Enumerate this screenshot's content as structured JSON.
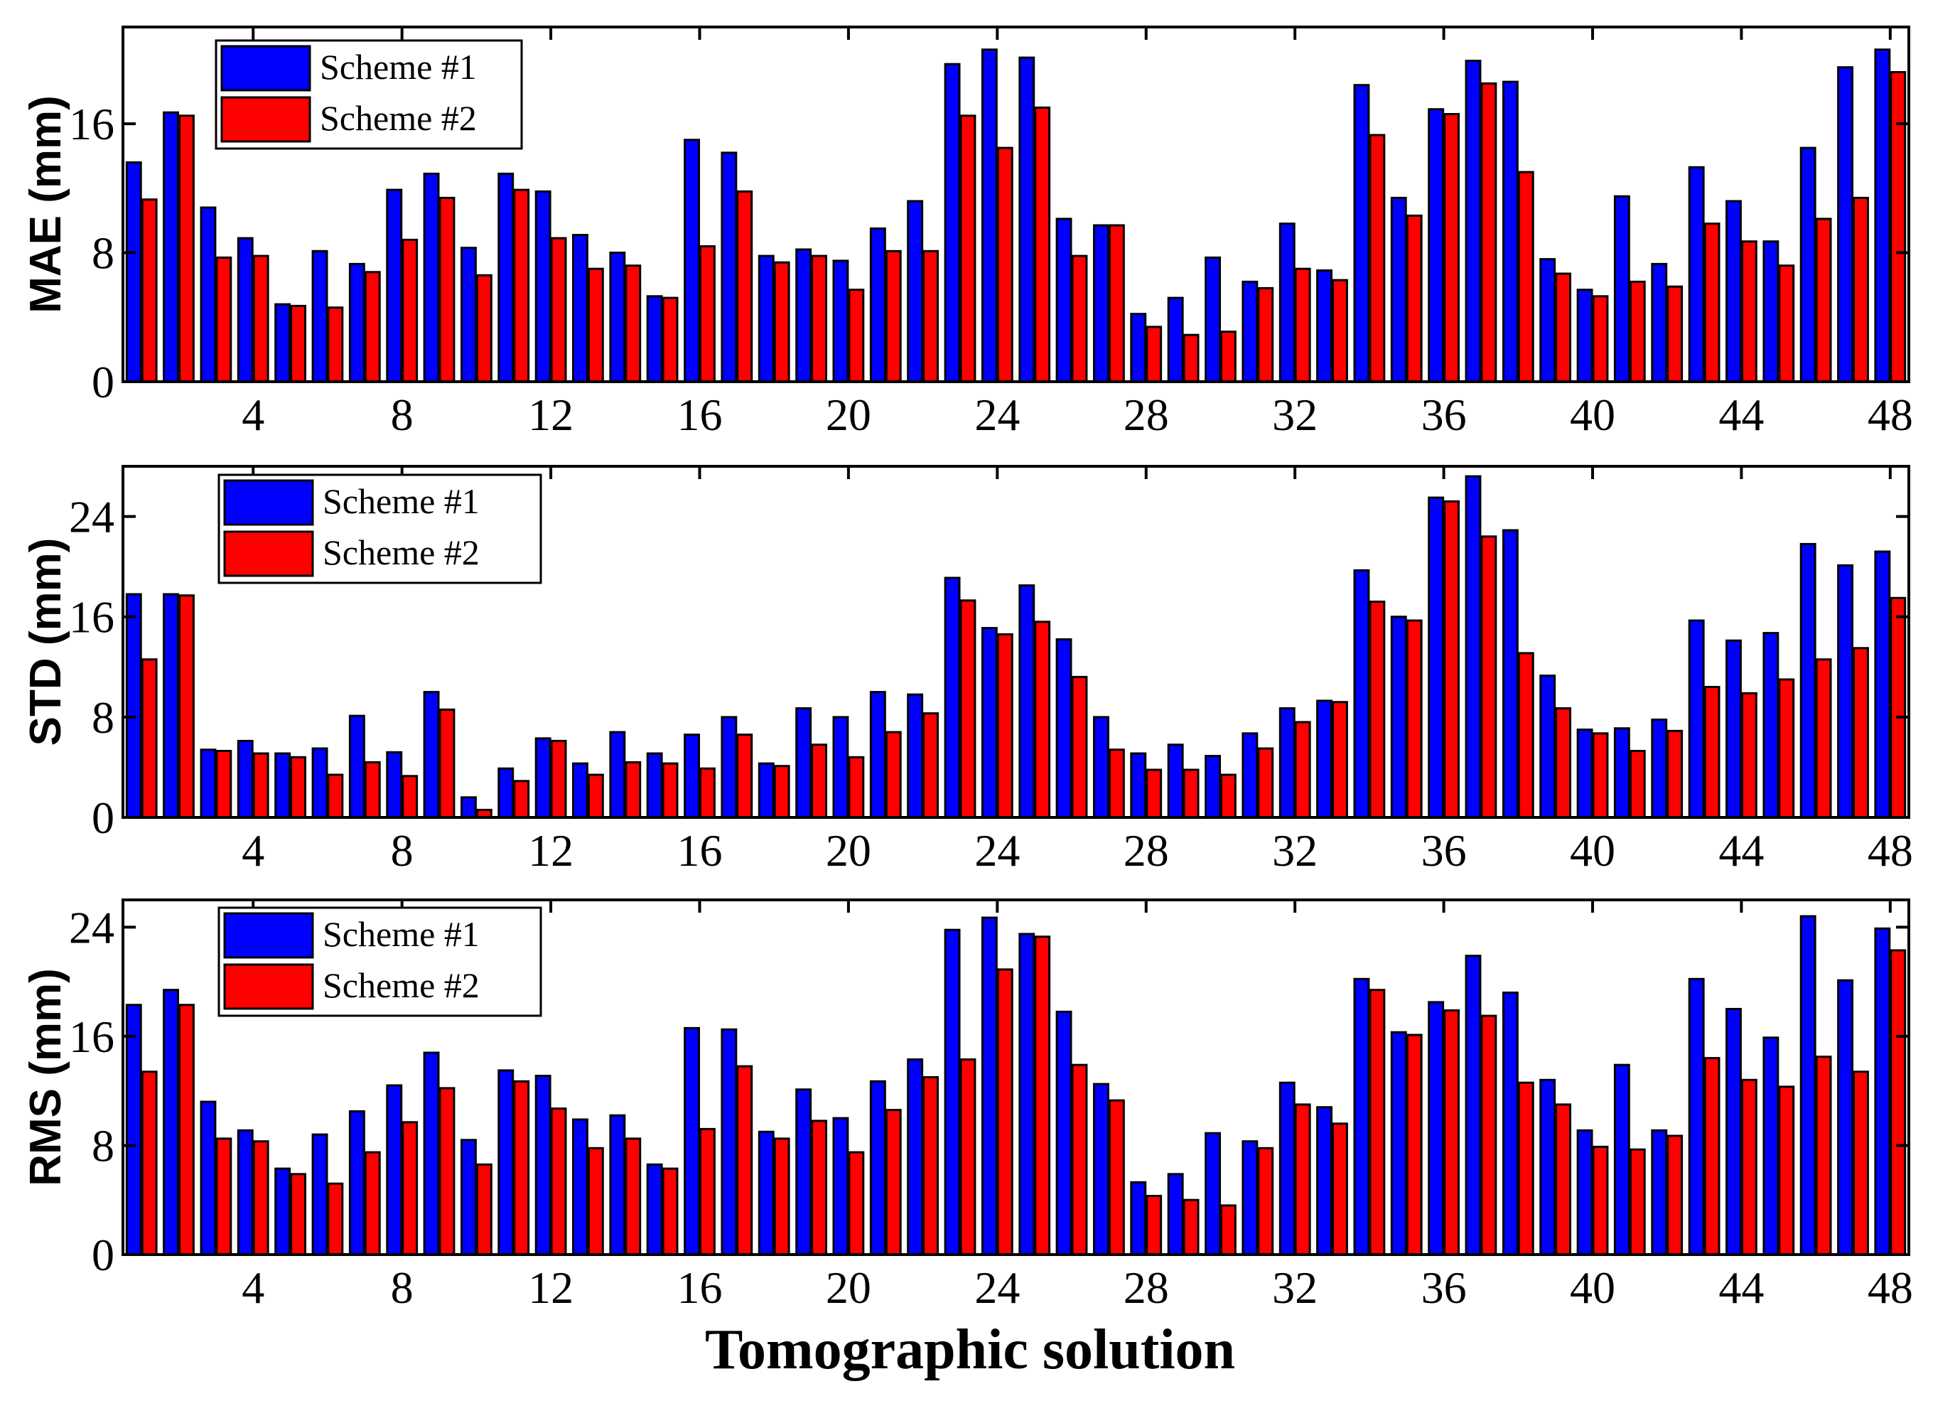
{
  "figure": {
    "xlabel": "Tomographic solution"
  },
  "colors": {
    "scheme1": "#0000ff",
    "scheme2": "#ff0000"
  },
  "chart_data": [
    {
      "type": "bar",
      "ylabel": "MAE (mm)",
      "ylim": [
        0,
        22
      ],
      "yticks": [
        0,
        8,
        16
      ],
      "xticks": [
        4,
        8,
        12,
        16,
        20,
        24,
        28,
        32,
        36,
        40,
        44,
        48
      ],
      "xlim": [
        0.5,
        48.5
      ],
      "legend_position": "top-left",
      "x": [
        1,
        2,
        3,
        4,
        5,
        6,
        7,
        8,
        9,
        10,
        11,
        12,
        13,
        14,
        15,
        16,
        17,
        18,
        19,
        20,
        21,
        22,
        23,
        24,
        25,
        26,
        27,
        28,
        29,
        30,
        31,
        32,
        33,
        34,
        35,
        36,
        37,
        38,
        39,
        40,
        41,
        42,
        43,
        44,
        45,
        46,
        47,
        48
      ],
      "series": [
        {
          "name": "Scheme #1",
          "values": [
            13.6,
            16.7,
            10.8,
            8.9,
            4.8,
            8.1,
            7.3,
            11.9,
            12.9,
            8.3,
            12.9,
            11.8,
            9.1,
            8.0,
            5.3,
            15.0,
            14.2,
            7.8,
            8.2,
            7.5,
            9.5,
            11.2,
            19.7,
            20.6,
            20.1,
            10.1,
            9.7,
            4.2,
            5.2,
            7.7,
            6.2,
            9.8,
            6.9,
            18.4,
            11.4,
            16.9,
            19.9,
            18.6,
            7.6,
            5.7,
            11.5,
            7.3,
            13.3,
            11.2,
            8.7,
            14.5,
            19.5,
            20.6
          ]
        },
        {
          "name": "Scheme #2",
          "values": [
            11.3,
            16.5,
            7.7,
            7.8,
            4.7,
            4.6,
            6.8,
            8.8,
            11.4,
            6.6,
            11.9,
            8.9,
            7.0,
            7.2,
            5.2,
            8.4,
            11.8,
            7.4,
            7.8,
            5.7,
            8.1,
            8.1,
            16.5,
            14.5,
            17.0,
            7.8,
            9.7,
            3.4,
            2.9,
            3.1,
            5.8,
            7.0,
            6.3,
            15.3,
            10.3,
            16.6,
            18.5,
            13.0,
            6.7,
            5.3,
            6.2,
            5.9,
            9.8,
            8.7,
            7.2,
            10.1,
            11.4,
            19.2
          ]
        }
      ]
    },
    {
      "type": "bar",
      "ylabel": "STD (mm)",
      "ylim": [
        0,
        28
      ],
      "yticks": [
        0,
        8,
        16,
        24
      ],
      "xticks": [
        4,
        8,
        12,
        16,
        20,
        24,
        28,
        32,
        36,
        40,
        44,
        48
      ],
      "xlim": [
        0.5,
        48.5
      ],
      "legend_position": "top-left",
      "x": [
        1,
        2,
        3,
        4,
        5,
        6,
        7,
        8,
        9,
        10,
        11,
        12,
        13,
        14,
        15,
        16,
        17,
        18,
        19,
        20,
        21,
        22,
        23,
        24,
        25,
        26,
        27,
        28,
        29,
        30,
        31,
        32,
        33,
        34,
        35,
        36,
        37,
        38,
        39,
        40,
        41,
        42,
        43,
        44,
        45,
        46,
        47,
        48
      ],
      "series": [
        {
          "name": "Scheme #1",
          "values": [
            17.8,
            17.8,
            5.4,
            6.1,
            5.1,
            5.5,
            8.1,
            5.2,
            10.0,
            1.6,
            3.9,
            6.3,
            4.3,
            6.8,
            5.1,
            6.6,
            8.0,
            4.3,
            8.7,
            8.0,
            10.0,
            9.8,
            19.1,
            15.1,
            18.5,
            14.2,
            8.0,
            5.1,
            5.8,
            4.9,
            6.7,
            8.7,
            9.3,
            19.7,
            16.0,
            25.5,
            27.2,
            22.9,
            11.3,
            7.0,
            7.1,
            7.8,
            15.7,
            14.1,
            14.7,
            21.8,
            20.1,
            21.2
          ]
        },
        {
          "name": "Scheme #2",
          "values": [
            12.6,
            17.7,
            5.3,
            5.1,
            4.8,
            3.4,
            4.4,
            3.3,
            8.6,
            0.6,
            2.9,
            6.1,
            3.4,
            4.4,
            4.3,
            3.9,
            6.6,
            4.1,
            5.8,
            4.8,
            6.8,
            8.3,
            17.3,
            14.6,
            15.6,
            11.2,
            5.4,
            3.8,
            3.8,
            3.4,
            5.5,
            7.6,
            9.2,
            17.2,
            15.7,
            25.2,
            22.4,
            13.1,
            8.7,
            6.7,
            5.3,
            6.9,
            10.4,
            9.9,
            11.0,
            12.6,
            13.5,
            17.5
          ]
        }
      ]
    },
    {
      "type": "bar",
      "ylabel": "RMS (mm)",
      "ylim": [
        0,
        26
      ],
      "yticks": [
        0,
        8,
        16,
        24
      ],
      "xticks": [
        4,
        8,
        12,
        16,
        20,
        24,
        28,
        32,
        36,
        40,
        44,
        48
      ],
      "xlim": [
        0.5,
        48.5
      ],
      "legend_position": "top-left",
      "x": [
        1,
        2,
        3,
        4,
        5,
        6,
        7,
        8,
        9,
        10,
        11,
        12,
        13,
        14,
        15,
        16,
        17,
        18,
        19,
        20,
        21,
        22,
        23,
        24,
        25,
        26,
        27,
        28,
        29,
        30,
        31,
        32,
        33,
        34,
        35,
        36,
        37,
        38,
        39,
        40,
        41,
        42,
        43,
        44,
        45,
        46,
        47,
        48
      ],
      "series": [
        {
          "name": "Scheme #1",
          "values": [
            18.3,
            19.4,
            11.2,
            9.1,
            6.3,
            8.8,
            10.5,
            12.4,
            14.8,
            8.4,
            13.5,
            13.1,
            9.9,
            10.2,
            6.6,
            16.6,
            16.5,
            9.0,
            12.1,
            10.0,
            12.7,
            14.3,
            23.8,
            24.7,
            23.5,
            17.8,
            12.5,
            5.3,
            5.9,
            8.9,
            8.3,
            12.6,
            10.8,
            20.2,
            16.3,
            18.5,
            21.9,
            19.2,
            12.8,
            9.1,
            13.9,
            9.1,
            20.2,
            18.0,
            15.9,
            24.8,
            20.1,
            23.9
          ]
        },
        {
          "name": "Scheme #2",
          "values": [
            13.4,
            18.3,
            8.5,
            8.3,
            5.9,
            5.2,
            7.5,
            9.7,
            12.2,
            6.6,
            12.7,
            10.7,
            7.8,
            8.5,
            6.3,
            9.2,
            13.8,
            8.5,
            9.8,
            7.5,
            10.6,
            13.0,
            14.3,
            20.9,
            23.3,
            13.9,
            11.3,
            4.3,
            4.0,
            3.6,
            7.8,
            11.0,
            9.6,
            19.4,
            16.1,
            17.9,
            17.5,
            12.6,
            11.0,
            7.9,
            7.7,
            8.7,
            14.4,
            12.8,
            12.3,
            14.5,
            13.4,
            22.3
          ]
        }
      ]
    }
  ]
}
